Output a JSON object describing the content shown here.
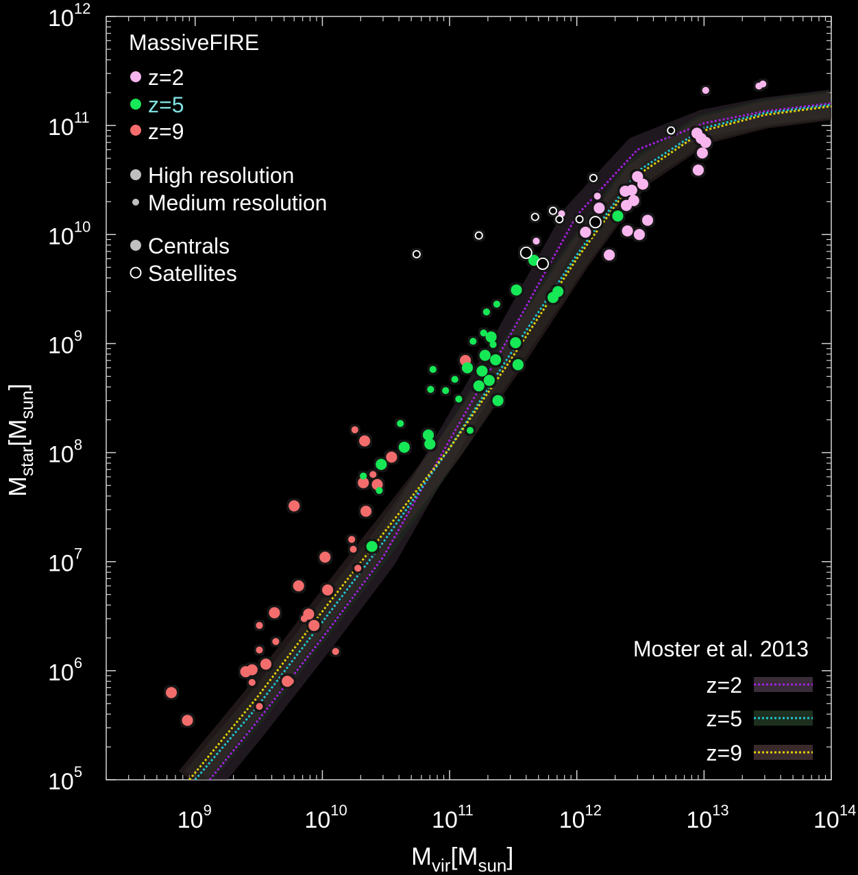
{
  "chart_data": {
    "type": "scatter",
    "title": "",
    "x_scale": "log",
    "y_scale": "log",
    "xlim": [
      200000000,
      100000000000000
    ],
    "ylim": [
      100000,
      1000000000000
    ],
    "xlabel": {
      "main": "M",
      "sub1": "vir",
      "mid": "[M",
      "sub2": "sun",
      "end": "]"
    },
    "ylabel": {
      "main": "M",
      "sub1": "star",
      "mid": "[M",
      "sub2": "sun",
      "end": "]"
    },
    "x_ticks": [
      {
        "value": 1000000000,
        "base": "10",
        "exp": "9"
      },
      {
        "value": 10000000000,
        "base": "10",
        "exp": "10"
      },
      {
        "value": 100000000000,
        "base": "10",
        "exp": "11"
      },
      {
        "value": 1000000000000,
        "base": "10",
        "exp": "12"
      },
      {
        "value": 10000000000000,
        "base": "10",
        "exp": "13"
      },
      {
        "value": 100000000000000,
        "base": "10",
        "exp": "14"
      }
    ],
    "y_ticks": [
      {
        "value": 100000,
        "base": "10",
        "exp": "5"
      },
      {
        "value": 1000000,
        "base": "10",
        "exp": "6"
      },
      {
        "value": 10000000,
        "base": "10",
        "exp": "7"
      },
      {
        "value": 100000000,
        "base": "10",
        "exp": "8"
      },
      {
        "value": 1000000000,
        "base": "10",
        "exp": "9"
      },
      {
        "value": 10000000000,
        "base": "10",
        "exp": "10"
      },
      {
        "value": 100000000000,
        "base": "10",
        "exp": "11"
      },
      {
        "value": 1000000000000,
        "base": "10",
        "exp": "12"
      }
    ],
    "legend_sim": {
      "title": "MassiveFIRE",
      "placement": "top-left",
      "entries": [
        {
          "label": "z=2",
          "color": "#f8b6ee"
        },
        {
          "label": "z=5",
          "color": "#17e857"
        },
        {
          "label": "z=9",
          "color": "#f46d6d"
        }
      ],
      "res_entries": [
        "High resolution",
        "Medium resolution"
      ],
      "type_entries": [
        "Centrals",
        "Satellites"
      ]
    },
    "legend_model": {
      "title": "Moster et al. 2013",
      "placement": "bottom-right",
      "entries": [
        {
          "label": "z=2",
          "color": "#a321e0",
          "band": "#3a2c38"
        },
        {
          "label": "z=5",
          "color": "#1fc6d2",
          "band": "#1d2f1e"
        },
        {
          "label": "z=9",
          "color": "#e3d20a",
          "band": "#3a2a2c"
        }
      ]
    },
    "model_curves": [
      {
        "name": "z=2",
        "color": "#a321e0",
        "band": "#3a2c38",
        "x": [
          1300000000.0,
          3000000000.0,
          10000000000.0,
          30000000000.0,
          100000000000.0,
          300000000000.0,
          1000000000000.0,
          3000000000000.0,
          10000000000000.0,
          30000000000000.0,
          100000000000000.0
        ],
        "y": [
          100000.0,
          330000.0,
          2000000.0,
          11000000.0,
          130000000.0,
          1200000000.0,
          15000000000.0,
          60000000000.0,
          105000000000.0,
          135000000000.0,
          160000000000.0
        ]
      },
      {
        "name": "z=5",
        "color": "#1fc6d2",
        "band": "#1d2f1e",
        "x": [
          1000000000.0,
          3000000000.0,
          10000000000.0,
          30000000000.0,
          100000000000.0,
          300000000000.0,
          1000000000000.0,
          3000000000000.0,
          10000000000000.0,
          30000000000000.0,
          100000000000000.0
        ],
        "y": [
          100000.0,
          450000.0,
          2800000.0,
          15000000.0,
          110000000.0,
          800000000.0,
          6500000000.0,
          38000000000.0,
          95000000000.0,
          130000000000.0,
          155000000000.0
        ]
      },
      {
        "name": "z=9",
        "color": "#e3d20a",
        "band": "#3a2a2c",
        "x": [
          900000000.0,
          3000000000.0,
          10000000000.0,
          30000000000.0,
          100000000000.0,
          300000000000.0,
          1000000000000.0,
          3000000000000.0,
          10000000000000.0,
          30000000000000.0,
          100000000000000.0
        ],
        "y": [
          100000.0,
          550000.0,
          3500000.0,
          18000000.0,
          110000000.0,
          700000000.0,
          6000000000.0,
          35000000000.0,
          90000000000.0,
          125000000000.0,
          150000000000.0
        ]
      }
    ],
    "series": [
      {
        "name": "z=9",
        "color": "#f46d6d",
        "points": [
          {
            "x": 650000000.0,
            "y": 630000.0,
            "res": "high",
            "type": "central"
          },
          {
            "x": 870000000.0,
            "y": 350000.0,
            "res": "high",
            "type": "central"
          },
          {
            "x": 2500000000.0,
            "y": 980000.0,
            "res": "high",
            "type": "central"
          },
          {
            "x": 2800000000.0,
            "y": 1020000.0,
            "res": "high",
            "type": "central"
          },
          {
            "x": 2800000000.0,
            "y": 780000.0,
            "res": "medium",
            "type": "central"
          },
          {
            "x": 3200000000.0,
            "y": 2600000.0,
            "res": "medium",
            "type": "central"
          },
          {
            "x": 3200000000.0,
            "y": 1550000.0,
            "res": "medium",
            "type": "central"
          },
          {
            "x": 3200000000.0,
            "y": 470000.0,
            "res": "medium",
            "type": "central"
          },
          {
            "x": 3600000000.0,
            "y": 1150000.0,
            "res": "high",
            "type": "central"
          },
          {
            "x": 4200000000.0,
            "y": 3400000.0,
            "res": "high",
            "type": "central"
          },
          {
            "x": 4300000000.0,
            "y": 1850000.0,
            "res": "medium",
            "type": "central"
          },
          {
            "x": 5300000000.0,
            "y": 800000.0,
            "res": "high",
            "type": "central"
          },
          {
            "x": 5600000000.0,
            "y": 800000.0,
            "res": "medium",
            "type": "central"
          },
          {
            "x": 6000000000.0,
            "y": 32500000.0,
            "res": "high",
            "type": "central"
          },
          {
            "x": 6500000000.0,
            "y": 6000000.0,
            "res": "high",
            "type": "central"
          },
          {
            "x": 7200000000.0,
            "y": 3000000.0,
            "res": "medium",
            "type": "central"
          },
          {
            "x": 7800000000.0,
            "y": 3300000.0,
            "res": "high",
            "type": "central"
          },
          {
            "x": 8600000000.0,
            "y": 2600000.0,
            "res": "high",
            "type": "central"
          },
          {
            "x": 10500000000.0,
            "y": 11000000.0,
            "res": "high",
            "type": "central"
          },
          {
            "x": 11000000000.0,
            "y": 5500000.0,
            "res": "high",
            "type": "central"
          },
          {
            "x": 12700000000.0,
            "y": 1500000.0,
            "res": "medium",
            "type": "central"
          },
          {
            "x": 17000000000.0,
            "y": 16000000.0,
            "res": "medium",
            "type": "central"
          },
          {
            "x": 17500000000.0,
            "y": 13000000.0,
            "res": "medium",
            "type": "central"
          },
          {
            "x": 18000000000.0,
            "y": 162000000.0,
            "res": "medium",
            "type": "central"
          },
          {
            "x": 19000000000.0,
            "y": 8700000.0,
            "res": "medium",
            "type": "central"
          },
          {
            "x": 21000000000.0,
            "y": 53000000.0,
            "res": "high",
            "type": "central"
          },
          {
            "x": 21500000000.0,
            "y": 128000000.0,
            "res": "high",
            "type": "central"
          },
          {
            "x": 22000000000.0,
            "y": 29000000.0,
            "res": "high",
            "type": "central"
          },
          {
            "x": 25000000000.0,
            "y": 63000000.0,
            "res": "medium",
            "type": "central"
          },
          {
            "x": 27000000000.0,
            "y": 51000000.0,
            "res": "high",
            "type": "central"
          },
          {
            "x": 35000000000.0,
            "y": 91000000.0,
            "res": "high",
            "type": "central"
          },
          {
            "x": 133000000000.0,
            "y": 700000000.0,
            "res": "high",
            "type": "central"
          }
        ]
      },
      {
        "name": "z=5",
        "color": "#17e857",
        "points": [
          {
            "x": 21000000000.0,
            "y": 61000000.0,
            "res": "medium",
            "type": "central"
          },
          {
            "x": 24500000000.0,
            "y": 13800000.0,
            "res": "high",
            "type": "central"
          },
          {
            "x": 28000000000.0,
            "y": 45000000.0,
            "res": "medium",
            "type": "central"
          },
          {
            "x": 29000000000.0,
            "y": 78000000.0,
            "res": "high",
            "type": "central"
          },
          {
            "x": 41000000000.0,
            "y": 185000000.0,
            "res": "medium",
            "type": "central"
          },
          {
            "x": 44000000000.0,
            "y": 112000000.0,
            "res": "high",
            "type": "central"
          },
          {
            "x": 68000000000.0,
            "y": 145000000.0,
            "res": "high",
            "type": "central"
          },
          {
            "x": 70000000000.0,
            "y": 120000000.0,
            "res": "high",
            "type": "central"
          },
          {
            "x": 71000000000.0,
            "y": 380000000.0,
            "res": "medium",
            "type": "central"
          },
          {
            "x": 74000000000.0,
            "y": 580000000.0,
            "res": "medium",
            "type": "central"
          },
          {
            "x": 93000000000.0,
            "y": 370000000.0,
            "res": "medium",
            "type": "central"
          },
          {
            "x": 110000000000.0,
            "y": 470000000.0,
            "res": "medium",
            "type": "central"
          },
          {
            "x": 118000000000.0,
            "y": 310000000.0,
            "res": "medium",
            "type": "central"
          },
          {
            "x": 138000000000.0,
            "y": 600000000.0,
            "res": "high",
            "type": "central"
          },
          {
            "x": 145000000000.0,
            "y": 160000000.0,
            "res": "medium",
            "type": "central"
          },
          {
            "x": 153000000000.0,
            "y": 1050000000.0,
            "res": "medium",
            "type": "central"
          },
          {
            "x": 170000000000.0,
            "y": 410000000.0,
            "res": "high",
            "type": "central"
          },
          {
            "x": 180000000000.0,
            "y": 560000000.0,
            "res": "high",
            "type": "central"
          },
          {
            "x": 185000000000.0,
            "y": 1250000000.0,
            "res": "medium",
            "type": "central"
          },
          {
            "x": 190000000000.0,
            "y": 780000000.0,
            "res": "high",
            "type": "central"
          },
          {
            "x": 195000000000.0,
            "y": 1950000000.0,
            "res": "medium",
            "type": "central"
          },
          {
            "x": 205000000000.0,
            "y": 460000000.0,
            "res": "high",
            "type": "central"
          },
          {
            "x": 212000000000.0,
            "y": 1150000000.0,
            "res": "high",
            "type": "central"
          },
          {
            "x": 220000000000.0,
            "y": 980000000.0,
            "res": "medium",
            "type": "central"
          },
          {
            "x": 230000000000.0,
            "y": 710000000.0,
            "res": "high",
            "type": "central"
          },
          {
            "x": 235000000000.0,
            "y": 2300000000.0,
            "res": "medium",
            "type": "central"
          },
          {
            "x": 240000000000.0,
            "y": 300000000.0,
            "res": "high",
            "type": "central"
          },
          {
            "x": 330000000000.0,
            "y": 1020000000.0,
            "res": "high",
            "type": "central"
          },
          {
            "x": 335000000000.0,
            "y": 3100000000.0,
            "res": "high",
            "type": "central"
          },
          {
            "x": 345000000000.0,
            "y": 640000000.0,
            "res": "high",
            "type": "central"
          },
          {
            "x": 460000000000.0,
            "y": 5800000000.0,
            "res": "high",
            "type": "central"
          },
          {
            "x": 650000000000.0,
            "y": 2650000000.0,
            "res": "high",
            "type": "central"
          },
          {
            "x": 710000000000.0,
            "y": 3000000000.0,
            "res": "high",
            "type": "central"
          },
          {
            "x": 2100000000000.0,
            "y": 14800000000.0,
            "res": "high",
            "type": "central"
          }
        ]
      },
      {
        "name": "z=2",
        "color": "#f8b6ee",
        "points": [
          {
            "x": 480000000000.0,
            "y": 8700000000.0,
            "res": "medium",
            "type": "central"
          },
          {
            "x": 760000000000.0,
            "y": 15500000000.0,
            "res": "medium",
            "type": "central"
          },
          {
            "x": 1170000000000.0,
            "y": 10500000000.0,
            "res": "high",
            "type": "central"
          },
          {
            "x": 1450000000000.0,
            "y": 22500000000.0,
            "res": "medium",
            "type": "central"
          },
          {
            "x": 1500000000000.0,
            "y": 17500000000.0,
            "res": "high",
            "type": "central"
          },
          {
            "x": 1800000000000.0,
            "y": 6500000000.0,
            "res": "high",
            "type": "central"
          },
          {
            "x": 2400000000000.0,
            "y": 25000000000.0,
            "res": "high",
            "type": "central"
          },
          {
            "x": 2450000000000.0,
            "y": 18500000000.0,
            "res": "high",
            "type": "central"
          },
          {
            "x": 2500000000000.0,
            "y": 10800000000.0,
            "res": "high",
            "type": "central"
          },
          {
            "x": 2700000000000.0,
            "y": 25500000000.0,
            "res": "high",
            "type": "central"
          },
          {
            "x": 2800000000000.0,
            "y": 20500000000.0,
            "res": "high",
            "type": "central"
          },
          {
            "x": 3000000000000.0,
            "y": 34000000000.0,
            "res": "high",
            "type": "central"
          },
          {
            "x": 3100000000000.0,
            "y": 10000000000.0,
            "res": "high",
            "type": "central"
          },
          {
            "x": 3300000000000.0,
            "y": 29000000000.0,
            "res": "high",
            "type": "central"
          },
          {
            "x": 3600000000000.0,
            "y": 13500000000.0,
            "res": "high",
            "type": "central"
          },
          {
            "x": 8800000000000.0,
            "y": 85000000000.0,
            "res": "high",
            "type": "central"
          },
          {
            "x": 9000000000000.0,
            "y": 39000000000.0,
            "res": "high",
            "type": "central"
          },
          {
            "x": 9500000000000.0,
            "y": 76000000000.0,
            "res": "high",
            "type": "central"
          },
          {
            "x": 9700000000000.0,
            "y": 56000000000.0,
            "res": "high",
            "type": "central"
          },
          {
            "x": 10300000000000.0,
            "y": 70000000000.0,
            "res": "high",
            "type": "central"
          },
          {
            "x": 10300000000000.0,
            "y": 210000000000.0,
            "res": "medium",
            "type": "central"
          },
          {
            "x": 27000000000000.0,
            "y": 230000000000.0,
            "res": "medium",
            "type": "central"
          },
          {
            "x": 29000000000000.0,
            "y": 240000000000.0,
            "res": "medium",
            "type": "central"
          },
          {
            "x": 55000000000.0,
            "y": 6600000000.0,
            "res": "medium",
            "type": "satellite"
          },
          {
            "x": 170000000000.0,
            "y": 9800000000.0,
            "res": "medium",
            "type": "satellite"
          },
          {
            "x": 400000000000.0,
            "y": 6800000000.0,
            "res": "high",
            "type": "satellite"
          },
          {
            "x": 470000000000.0,
            "y": 14500000000.0,
            "res": "medium",
            "type": "satellite"
          },
          {
            "x": 540000000000.0,
            "y": 5400000000.0,
            "res": "high",
            "type": "satellite"
          },
          {
            "x": 650000000000.0,
            "y": 16500000000.0,
            "res": "medium",
            "type": "satellite"
          },
          {
            "x": 730000000000.0,
            "y": 13800000000.0,
            "res": "medium",
            "type": "satellite"
          },
          {
            "x": 1050000000000.0,
            "y": 13800000000.0,
            "res": "medium",
            "type": "satellite"
          },
          {
            "x": 1350000000000.0,
            "y": 33000000000.0,
            "res": "medium",
            "type": "satellite"
          },
          {
            "x": 1400000000000.0,
            "y": 13000000000.0,
            "res": "high",
            "type": "satellite"
          },
          {
            "x": 5500000000000.0,
            "y": 90000000000.0,
            "res": "medium",
            "type": "satellite"
          }
        ]
      }
    ]
  }
}
